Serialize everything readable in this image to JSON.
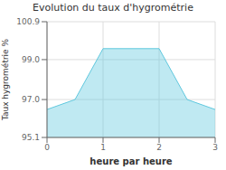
{
  "chart_data": {
    "type": "area",
    "title": "Evolution du taux d'hygrométrie",
    "xlabel": "heure par heure",
    "ylabel": "Taux hygrométrie %",
    "x": [
      0,
      0.5,
      1,
      2,
      2.5,
      3
    ],
    "values": [
      96.5,
      97.0,
      99.55,
      99.55,
      97.0,
      96.5
    ],
    "color": "#60c8de",
    "xlim": [
      0,
      3
    ],
    "ylim": [
      95.1,
      100.9
    ],
    "xticks": [
      0,
      1,
      2,
      3
    ],
    "yticks": [
      95.1,
      {
        "value": 97.0,
        "label": "97.0"
      },
      {
        "value": 99.0,
        "label": "99.0"
      },
      100.9
    ],
    "grid": true
  }
}
